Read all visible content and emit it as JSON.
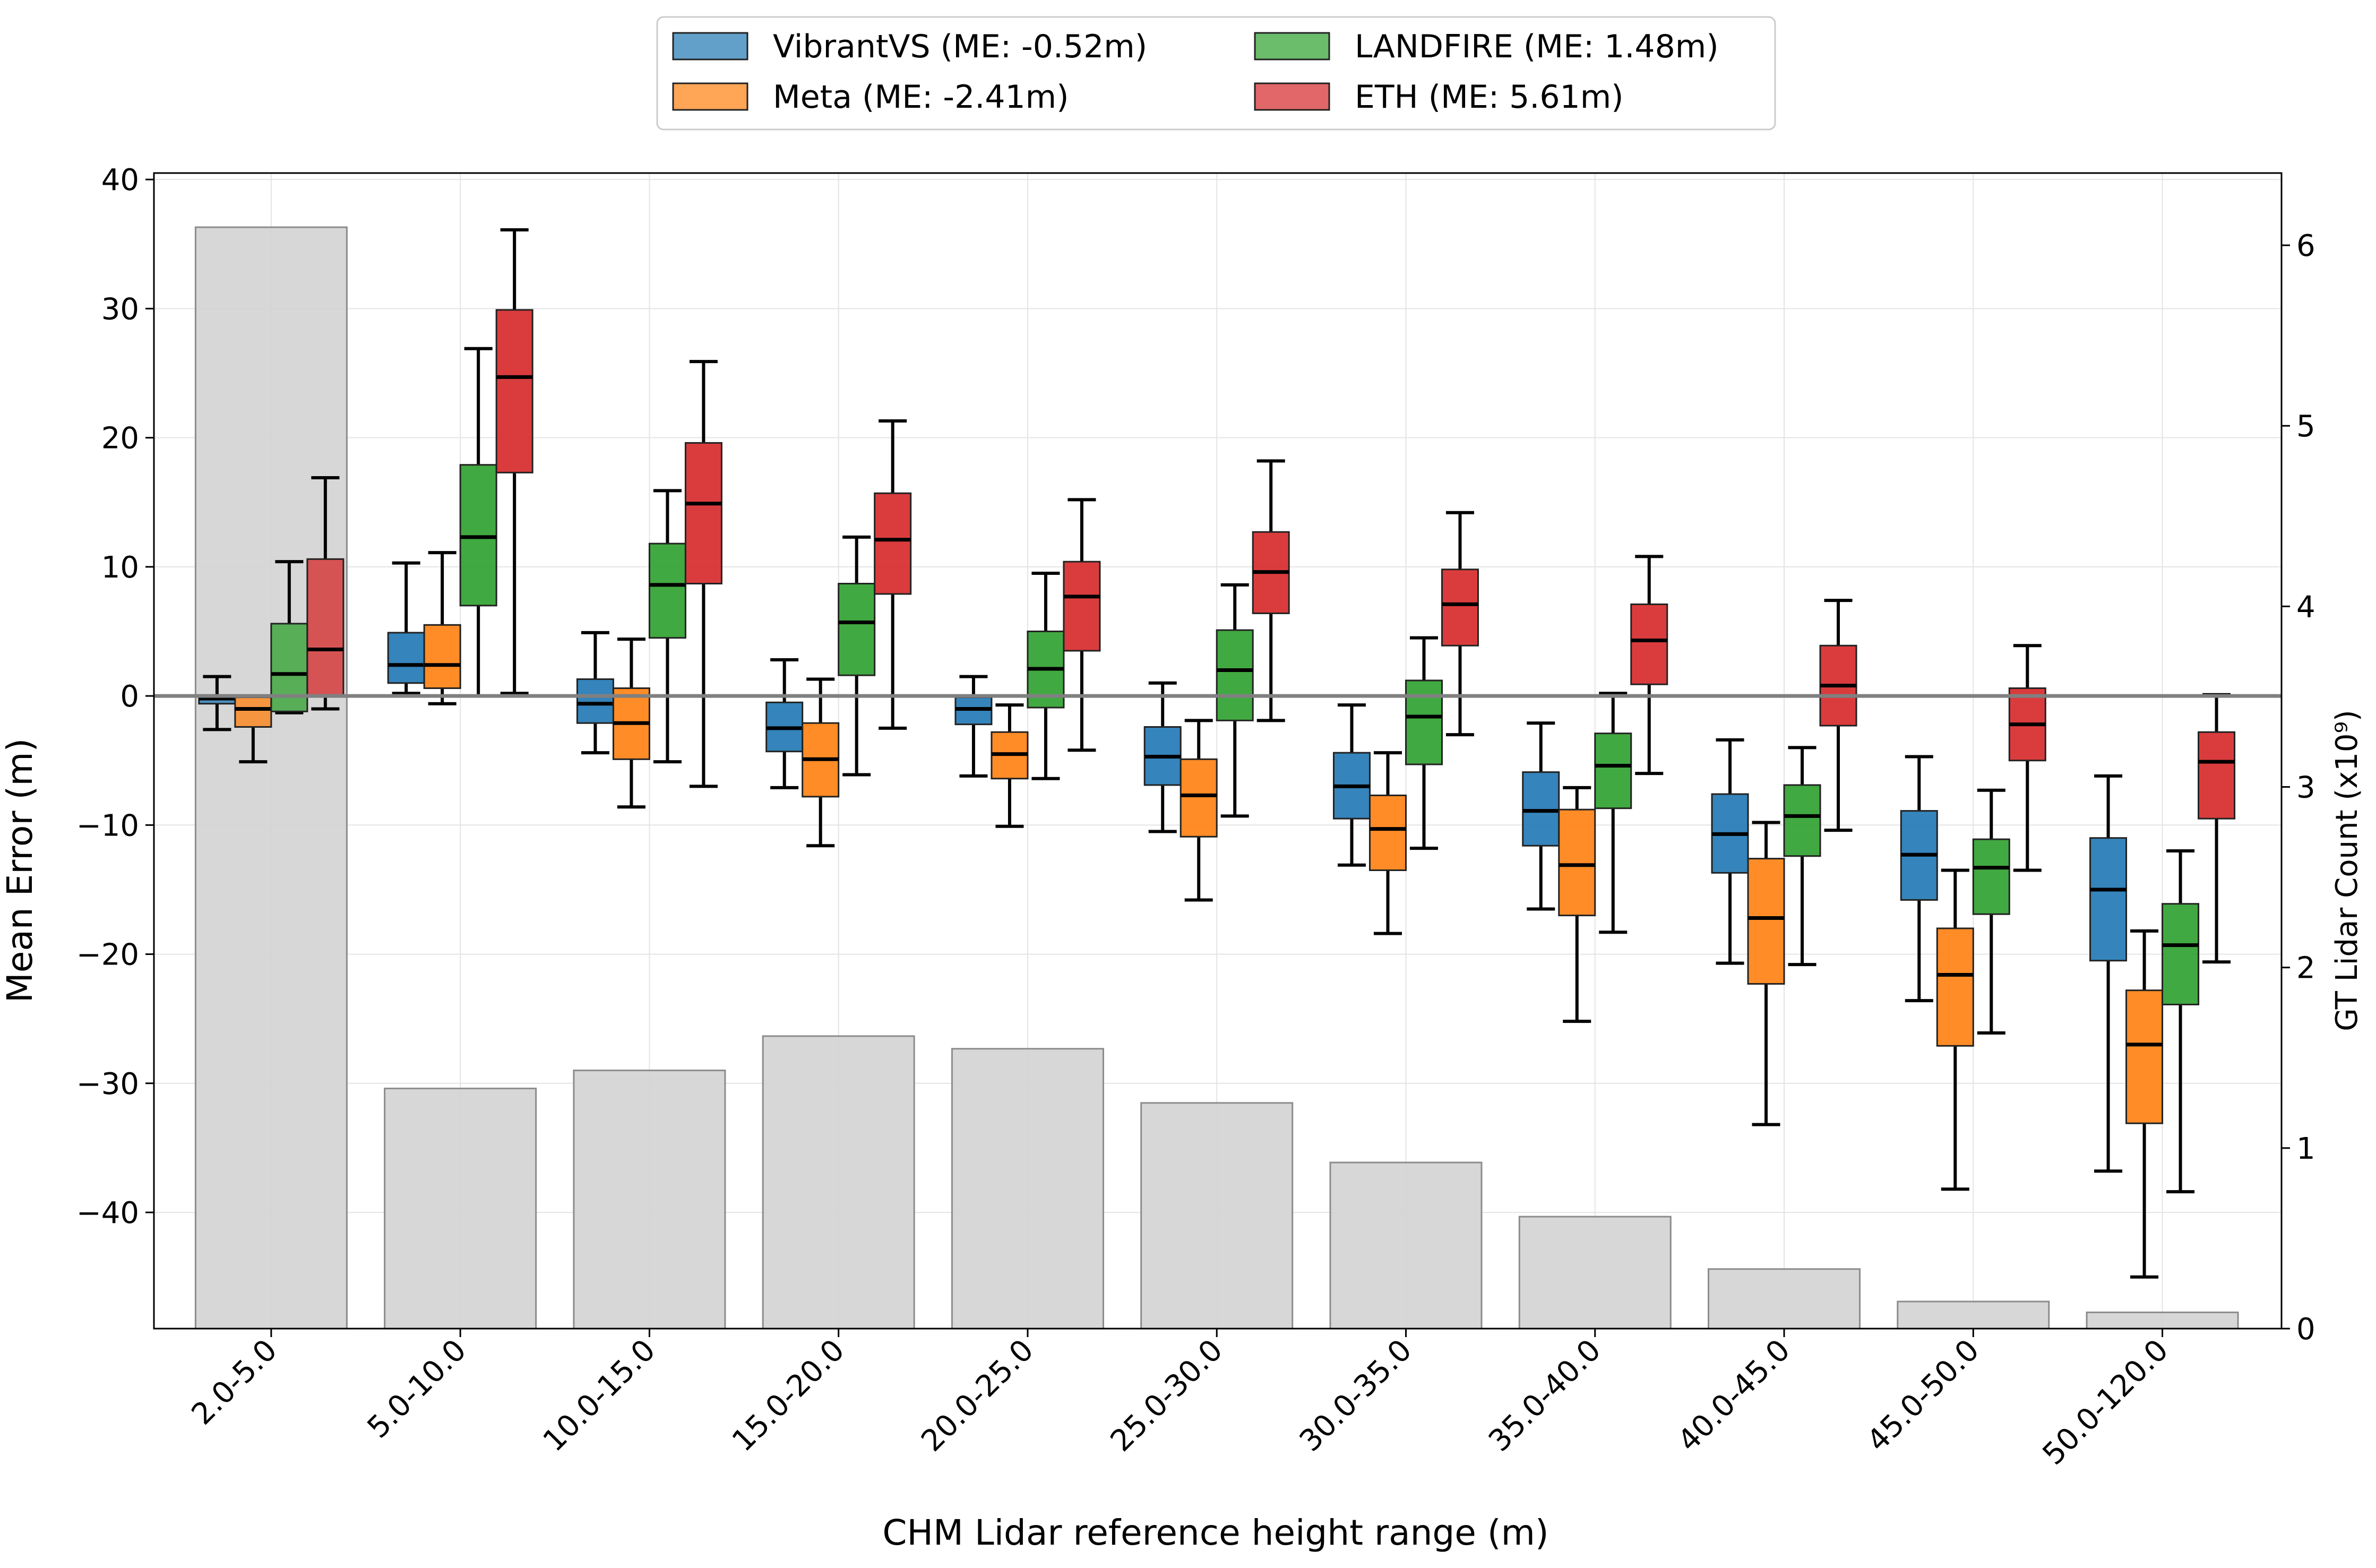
{
  "chart_data": {
    "type": "box",
    "xlabel": "CHM Lidar reference height range (m)",
    "ylabel": "Mean Error (m)",
    "y2label": "GT Lidar Count (x10⁹)",
    "ylim": [
      -49,
      40.5
    ],
    "y2lim": [
      0,
      6.4
    ],
    "yticks": [
      -40,
      -30,
      -20,
      -10,
      0,
      10,
      20,
      30,
      40
    ],
    "y2ticks": [
      0,
      1,
      2,
      3,
      4,
      5,
      6
    ],
    "grid": true,
    "reference_line": 0,
    "legend_position": "top-center",
    "categories": [
      "2.0-5.0",
      "5.0-10.0",
      "10.0-15.0",
      "15.0-20.0",
      "20.0-25.0",
      "25.0-30.0",
      "30.0-35.0",
      "35.0-40.0",
      "40.0-45.0",
      "45.0-50.0",
      "50.0-120.0"
    ],
    "lidar_counts": [
      6.1,
      1.33,
      1.43,
      1.62,
      1.55,
      1.25,
      0.92,
      0.62,
      0.33,
      0.15,
      0.09
    ],
    "series": [
      {
        "name": "VibrantVS",
        "legend_label": "VibrantVS (ME: -0.52m)",
        "color": "#1f77b4",
        "boxes": [
          {
            "whislo": -2.6,
            "q1": -0.6,
            "med": -0.2,
            "q3": 0.0,
            "whishi": 1.5
          },
          {
            "whislo": 0.2,
            "q1": 1.0,
            "med": 2.4,
            "q3": 4.9,
            "whishi": 10.3
          },
          {
            "whislo": -4.4,
            "q1": -2.1,
            "med": -0.6,
            "q3": 1.3,
            "whishi": 4.9
          },
          {
            "whislo": -7.1,
            "q1": -4.3,
            "med": -2.5,
            "q3": -0.5,
            "whishi": 2.8
          },
          {
            "whislo": -6.2,
            "q1": -2.2,
            "med": -1.0,
            "q3": -0.1,
            "whishi": 1.5
          },
          {
            "whislo": -10.5,
            "q1": -6.9,
            "med": -4.7,
            "q3": -2.4,
            "whishi": 1.0
          },
          {
            "whislo": -13.1,
            "q1": -9.5,
            "med": -7.0,
            "q3": -4.4,
            "whishi": -0.7
          },
          {
            "whislo": -16.5,
            "q1": -11.6,
            "med": -8.9,
            "q3": -5.9,
            "whishi": -2.1
          },
          {
            "whislo": -20.7,
            "q1": -13.7,
            "med": -10.7,
            "q3": -7.6,
            "whishi": -3.4
          },
          {
            "whislo": -23.6,
            "q1": -15.8,
            "med": -12.3,
            "q3": -8.9,
            "whishi": -4.7
          },
          {
            "whislo": -36.8,
            "q1": -20.5,
            "med": -15.0,
            "q3": -11.0,
            "whishi": -6.2
          }
        ]
      },
      {
        "name": "Meta",
        "legend_label": "Meta (ME: -2.41m)",
        "color": "#ff7f0e",
        "boxes": [
          {
            "whislo": -5.1,
            "q1": -2.4,
            "med": -1.0,
            "q3": -0.1,
            "whishi": 0.0
          },
          {
            "whislo": -0.6,
            "q1": 0.6,
            "med": 2.4,
            "q3": 5.5,
            "whishi": 11.1
          },
          {
            "whislo": -8.6,
            "q1": -4.9,
            "med": -2.1,
            "q3": 0.6,
            "whishi": 4.4
          },
          {
            "whislo": -11.6,
            "q1": -7.8,
            "med": -4.9,
            "q3": -2.1,
            "whishi": 1.3
          },
          {
            "whislo": -10.1,
            "q1": -6.4,
            "med": -4.5,
            "q3": -2.8,
            "whishi": -0.7
          },
          {
            "whislo": -15.8,
            "q1": -10.9,
            "med": -7.7,
            "q3": -4.9,
            "whishi": -1.9
          },
          {
            "whislo": -18.4,
            "q1": -13.5,
            "med": -10.3,
            "q3": -7.7,
            "whishi": -4.4
          },
          {
            "whislo": -25.2,
            "q1": -17.0,
            "med": -13.1,
            "q3": -8.8,
            "whishi": -7.1
          },
          {
            "whislo": -33.2,
            "q1": -22.3,
            "med": -17.2,
            "q3": -12.6,
            "whishi": -9.8
          },
          {
            "whislo": -38.2,
            "q1": -27.1,
            "med": -21.6,
            "q3": -18.0,
            "whishi": -13.5
          },
          {
            "whislo": -45.0,
            "q1": -33.1,
            "med": -27.0,
            "q3": -22.8,
            "whishi": -18.2
          }
        ]
      },
      {
        "name": "LANDFIRE",
        "legend_label": "LANDFIRE (ME: 1.48m)",
        "color": "#2ca02c",
        "boxes": [
          {
            "whislo": -1.3,
            "q1": -1.2,
            "med": 1.7,
            "q3": 5.6,
            "whishi": 10.4
          },
          {
            "whislo": 0.0,
            "q1": 7.0,
            "med": 12.3,
            "q3": 17.9,
            "whishi": 26.9
          },
          {
            "whislo": -5.1,
            "q1": 4.5,
            "med": 8.6,
            "q3": 11.8,
            "whishi": 15.9
          },
          {
            "whislo": -6.1,
            "q1": 1.6,
            "med": 5.7,
            "q3": 8.7,
            "whishi": 12.3
          },
          {
            "whislo": -6.4,
            "q1": -0.9,
            "med": 2.1,
            "q3": 5.0,
            "whishi": 9.5
          },
          {
            "whislo": -9.3,
            "q1": -1.9,
            "med": 2.0,
            "q3": 5.1,
            "whishi": 8.6
          },
          {
            "whislo": -11.8,
            "q1": -5.3,
            "med": -1.6,
            "q3": 1.2,
            "whishi": 4.5
          },
          {
            "whislo": -18.3,
            "q1": -8.7,
            "med": -5.4,
            "q3": -2.9,
            "whishi": 0.2
          },
          {
            "whislo": -20.8,
            "q1": -12.4,
            "med": -9.3,
            "q3": -6.9,
            "whishi": -4.0
          },
          {
            "whislo": -26.1,
            "q1": -16.9,
            "med": -13.3,
            "q3": -11.1,
            "whishi": -7.3
          },
          {
            "whislo": -38.4,
            "q1": -23.9,
            "med": -19.3,
            "q3": -16.1,
            "whishi": -12.0
          }
        ]
      },
      {
        "name": "ETH",
        "legend_label": "ETH (ME: 5.61m)",
        "color": "#d62728",
        "boxes": [
          {
            "whislo": -1.0,
            "q1": 0.0,
            "med": 3.6,
            "q3": 10.6,
            "whishi": 16.9
          },
          {
            "whislo": 0.2,
            "q1": 17.3,
            "med": 24.7,
            "q3": 29.9,
            "whishi": 36.1
          },
          {
            "whislo": -7.0,
            "q1": 8.7,
            "med": 14.9,
            "q3": 19.6,
            "whishi": 25.9
          },
          {
            "whislo": -2.5,
            "q1": 7.9,
            "med": 12.1,
            "q3": 15.7,
            "whishi": 21.3
          },
          {
            "whislo": -4.2,
            "q1": 3.5,
            "med": 7.7,
            "q3": 10.4,
            "whishi": 15.2
          },
          {
            "whislo": -1.9,
            "q1": 6.4,
            "med": 9.6,
            "q3": 12.7,
            "whishi": 18.2
          },
          {
            "whislo": -3.0,
            "q1": 3.9,
            "med": 7.1,
            "q3": 9.8,
            "whishi": 14.2
          },
          {
            "whislo": -6.0,
            "q1": 0.9,
            "med": 4.3,
            "q3": 7.1,
            "whishi": 10.8
          },
          {
            "whislo": -10.4,
            "q1": -2.3,
            "med": 0.8,
            "q3": 3.9,
            "whishi": 7.4
          },
          {
            "whislo": -13.5,
            "q1": -5.0,
            "med": -2.2,
            "q3": 0.6,
            "whishi": 3.9
          },
          {
            "whislo": -20.6,
            "q1": -9.5,
            "med": -5.1,
            "q3": -2.8,
            "whishi": 0.1
          }
        ]
      }
    ]
  }
}
